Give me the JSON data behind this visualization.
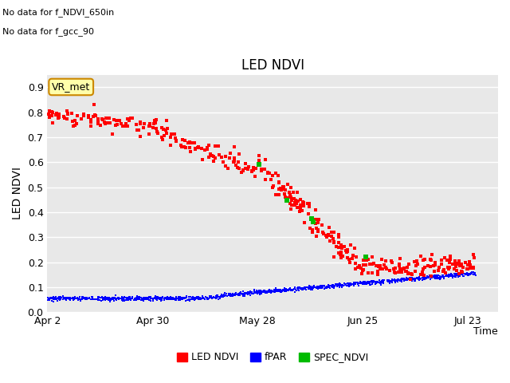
{
  "title": "LED NDVI",
  "xlabel": "Time",
  "ylabel": "LED NDVI",
  "annotation_lines": [
    "No data for f_NDVI_650in",
    "No data for f_gcc_90"
  ],
  "vr_label": "VR_met",
  "ylim": [
    0.0,
    0.95
  ],
  "yticks": [
    0.0,
    0.1,
    0.2,
    0.3,
    0.4,
    0.5,
    0.6,
    0.7,
    0.8,
    0.9
  ],
  "xtick_labels": [
    "Apr 2",
    "Apr 30",
    "May 28",
    "Jun 25",
    "Jul 23"
  ],
  "legend_labels": [
    "LED NDVI",
    "fPAR",
    "SPEC_NDVI"
  ],
  "legend_colors": [
    "#ff0000",
    "#0000ff",
    "#00bb00"
  ],
  "bg_color": "#ffffff",
  "plot_bg_color": "#e8e8e8",
  "grid_color": "#ffffff",
  "seed": 42
}
